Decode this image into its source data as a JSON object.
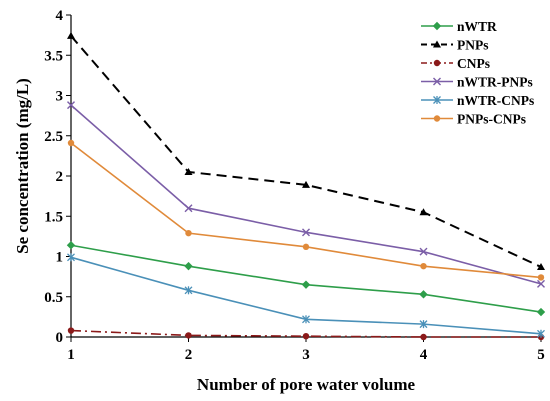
{
  "chart_data": {
    "type": "line",
    "xlabel": "Number of pore water volume",
    "ylabel": "Se concentration (mg/L)",
    "xlim": [
      1,
      5
    ],
    "ylim": [
      0,
      4
    ],
    "x_ticks": [
      "1",
      "2",
      "3",
      "4",
      "5"
    ],
    "y_ticks": [
      "0",
      "0.5",
      "1",
      "1.5",
      "2",
      "2.5",
      "3",
      "3.5",
      "4"
    ],
    "grid": false,
    "legend_position": "top-right",
    "x": [
      1,
      2,
      3,
      4,
      5
    ],
    "series": [
      {
        "name": "nWTR",
        "values": [
          1.14,
          0.88,
          0.65,
          0.53,
          0.31
        ],
        "color": "#2e9e4a",
        "dash": "",
        "marker": "diamond"
      },
      {
        "name": "PNPs",
        "values": [
          3.74,
          2.05,
          1.89,
          1.55,
          0.87
        ],
        "color": "#000000",
        "dash": "10,6",
        "marker": "triangle"
      },
      {
        "name": "CNPs",
        "values": [
          0.08,
          0.02,
          0.01,
          0.0,
          0.0
        ],
        "color": "#8b1a1a",
        "dash": "10,4,2,4",
        "marker": "circle"
      },
      {
        "name": "nWTR-PNPs",
        "values": [
          2.88,
          1.6,
          1.3,
          1.06,
          0.66
        ],
        "color": "#7b5ea7",
        "dash": "",
        "marker": "x"
      },
      {
        "name": "nWTR-CNPs",
        "values": [
          0.99,
          0.58,
          0.22,
          0.16,
          0.04
        ],
        "color": "#4a90b8",
        "dash": "",
        "marker": "star"
      },
      {
        "name": "PNPs-CNPs",
        "values": [
          2.41,
          1.29,
          1.12,
          0.88,
          0.74
        ],
        "color": "#e08a3a",
        "dash": "",
        "marker": "circle"
      }
    ]
  }
}
